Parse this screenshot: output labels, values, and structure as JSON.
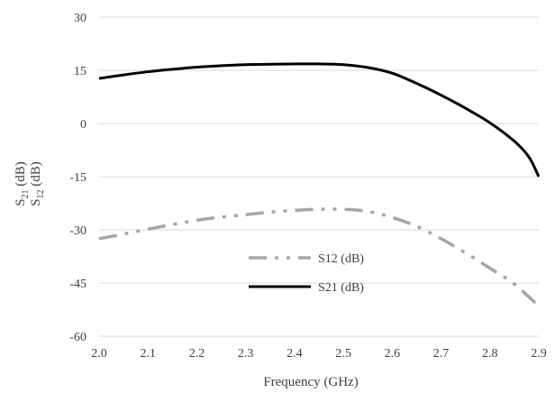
{
  "chart_data": {
    "type": "line",
    "xlabel": "Frequency (GHz)",
    "ylabel": {
      "line1": {
        "base": "S",
        "sub": "21",
        "rest": " (dB)"
      },
      "line2": {
        "base": "S",
        "sub": "12",
        "rest": " (dB)"
      }
    },
    "xlim": [
      2.0,
      2.9
    ],
    "ylim": [
      -60,
      30
    ],
    "x_ticks": [
      "2.0",
      "2.1",
      "2.2",
      "2.3",
      "2.4",
      "2.5",
      "2.6",
      "2.7",
      "2.8",
      "2.9"
    ],
    "y_ticks": [
      "30",
      "15",
      "0",
      "-15",
      "-30",
      "-45",
      "-60"
    ],
    "grid": "horizontal",
    "legend_position": "center-bottom",
    "series": [
      {
        "name": "S12 (dB)",
        "color": "#a6a6a6",
        "style": "long-dash-dot-dot",
        "x": [
          2.0,
          2.05,
          2.1,
          2.15,
          2.2,
          2.25,
          2.3,
          2.35,
          2.4,
          2.45,
          2.5,
          2.55,
          2.6,
          2.65,
          2.7,
          2.75,
          2.8,
          2.85,
          2.9
        ],
        "y": [
          -32.5,
          -31.2,
          -29.8,
          -28.5,
          -27.3,
          -26.4,
          -25.7,
          -25.0,
          -24.5,
          -24.2,
          -24.2,
          -24.8,
          -26.5,
          -29.0,
          -32.5,
          -36.5,
          -40.8,
          -45.3,
          -51.5
        ]
      },
      {
        "name": "S21 (dB)",
        "color": "#000000",
        "style": "solid",
        "x": [
          2.0,
          2.05,
          2.1,
          2.15,
          2.2,
          2.25,
          2.3,
          2.35,
          2.4,
          2.45,
          2.5,
          2.55,
          2.6,
          2.65,
          2.7,
          2.75,
          2.8,
          2.85,
          2.88,
          2.9
        ],
        "y": [
          12.7,
          13.7,
          14.6,
          15.3,
          15.9,
          16.3,
          16.6,
          16.7,
          16.8,
          16.8,
          16.6,
          15.8,
          14.2,
          11.3,
          8.0,
          4.3,
          0.2,
          -5.0,
          -9.5,
          -15.0
        ]
      }
    ]
  }
}
